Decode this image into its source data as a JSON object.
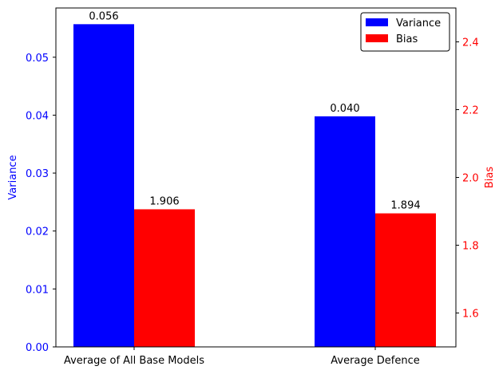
{
  "chart_data": {
    "type": "bar",
    "categories": [
      "Average of All Base Models",
      "Average Defence"
    ],
    "series": [
      {
        "name": "Variance",
        "axis": "left",
        "color": "#0000ff",
        "values": [
          0.056,
          0.04
        ],
        "plot_values": [
          0.0557,
          0.0398
        ],
        "labels": [
          "0.056",
          "0.040"
        ]
      },
      {
        "name": "Bias",
        "axis": "right",
        "color": "#ff0000",
        "values": [
          1.906,
          1.894
        ],
        "labels": [
          "1.906",
          "1.894"
        ]
      }
    ],
    "left_axis": {
      "label": "Variance",
      "color": "#0000ff",
      "ylim": [
        0,
        0.0585
      ],
      "ticks": [
        0.0,
        0.01,
        0.02,
        0.03,
        0.04,
        0.05
      ],
      "tick_labels": [
        "0.00",
        "0.01",
        "0.02",
        "0.03",
        "0.04",
        "0.05"
      ]
    },
    "right_axis": {
      "label": "Bias",
      "color": "#ff0000",
      "ylim": [
        1.5,
        2.5
      ],
      "ticks": [
        1.6,
        1.8,
        2.0,
        2.2,
        2.4
      ],
      "tick_labels": [
        "1.6",
        "1.8",
        "2.0",
        "2.2",
        "2.4"
      ]
    },
    "legend": {
      "position": "top-right",
      "entries": [
        "Variance",
        "Bias"
      ]
    },
    "grid": false
  }
}
